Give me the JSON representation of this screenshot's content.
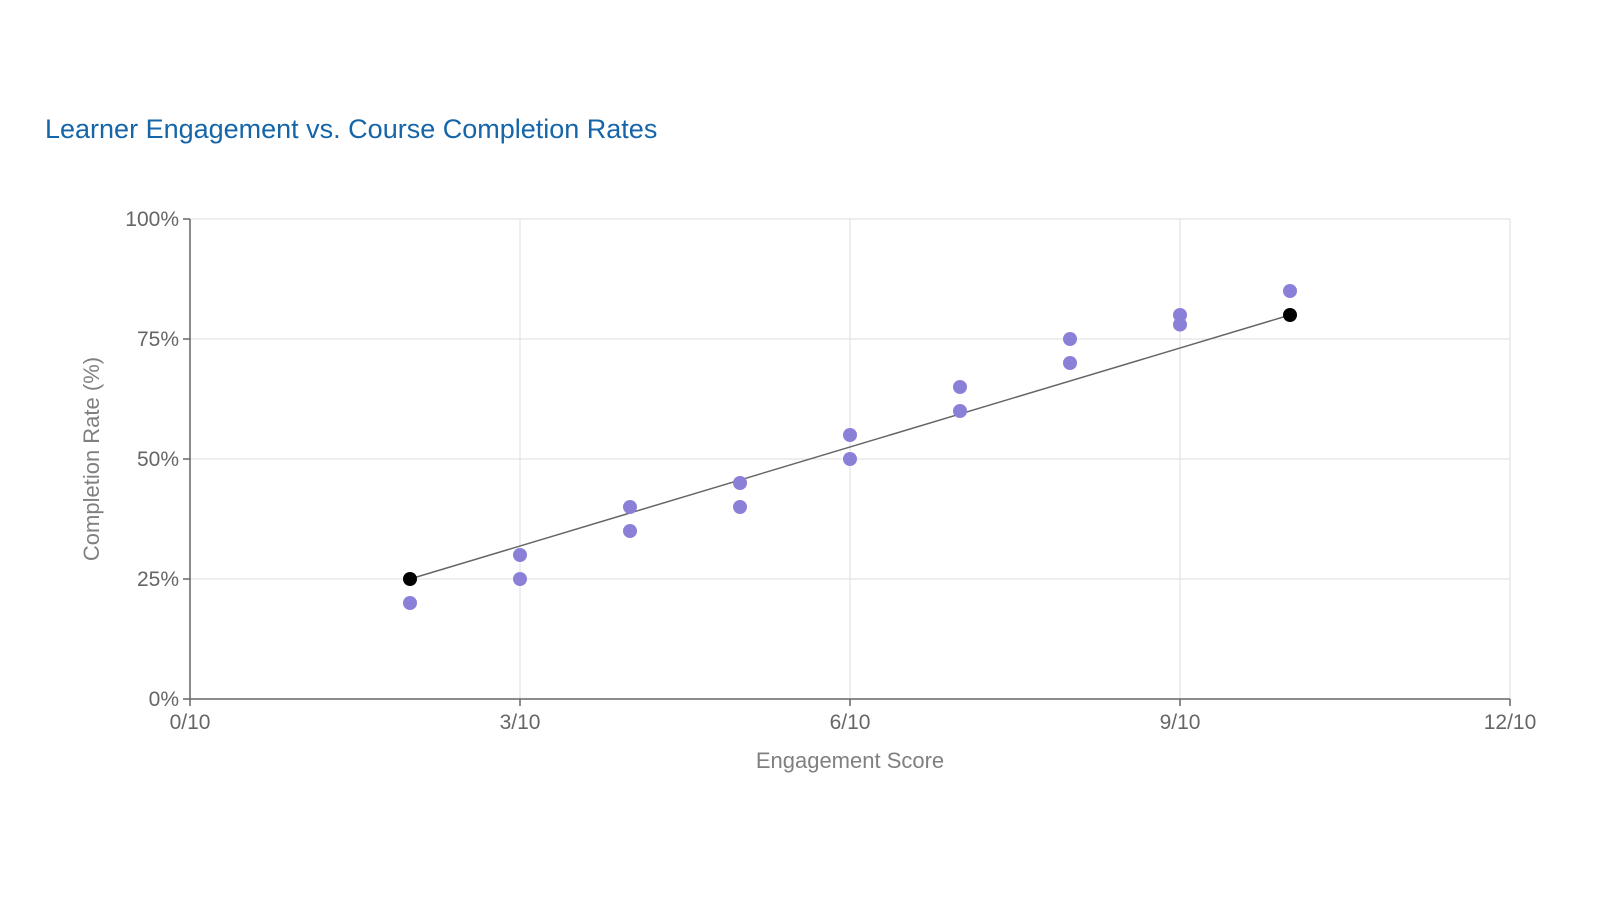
{
  "chart_data": {
    "type": "scatter",
    "title": "Learner Engagement vs. Course Completion Rates",
    "xlabel": "Engagement Score",
    "ylabel": "Completion Rate (%)",
    "xlim": [
      0,
      12
    ],
    "ylim": [
      0,
      100
    ],
    "x_ticks": [
      0,
      3,
      6,
      9,
      12
    ],
    "x_tick_labels": [
      "0/10",
      "3/10",
      "6/10",
      "9/10",
      "12/10"
    ],
    "y_ticks": [
      0,
      25,
      50,
      75,
      100
    ],
    "y_tick_labels": [
      "0%",
      "25%",
      "50%",
      "75%",
      "100%"
    ],
    "grid": true,
    "legend": "none",
    "series": [
      {
        "color": "#8a80d8",
        "points": [
          {
            "x": 2,
            "y": 20
          },
          {
            "x": 3,
            "y": 25
          },
          {
            "x": 3,
            "y": 30
          },
          {
            "x": 4,
            "y": 35
          },
          {
            "x": 4,
            "y": 40
          },
          {
            "x": 5,
            "y": 40
          },
          {
            "x": 5,
            "y": 45
          },
          {
            "x": 6,
            "y": 50
          },
          {
            "x": 6,
            "y": 55
          },
          {
            "x": 7,
            "y": 60
          },
          {
            "x": 7,
            "y": 65
          },
          {
            "x": 8,
            "y": 70
          },
          {
            "x": 8,
            "y": 75
          },
          {
            "x": 9,
            "y": 78
          },
          {
            "x": 9,
            "y": 80
          },
          {
            "x": 10,
            "y": 85
          }
        ]
      }
    ],
    "trendline": {
      "color": "#666666",
      "endpoint_color": "#000000",
      "start": {
        "x": 2,
        "y": 25
      },
      "end": {
        "x": 10,
        "y": 80
      }
    }
  },
  "colors": {
    "title": "#1565a8",
    "axis": "#666666",
    "grid": "#dddddd",
    "tick_text": "#666666",
    "axis_title_text": "#808080"
  }
}
